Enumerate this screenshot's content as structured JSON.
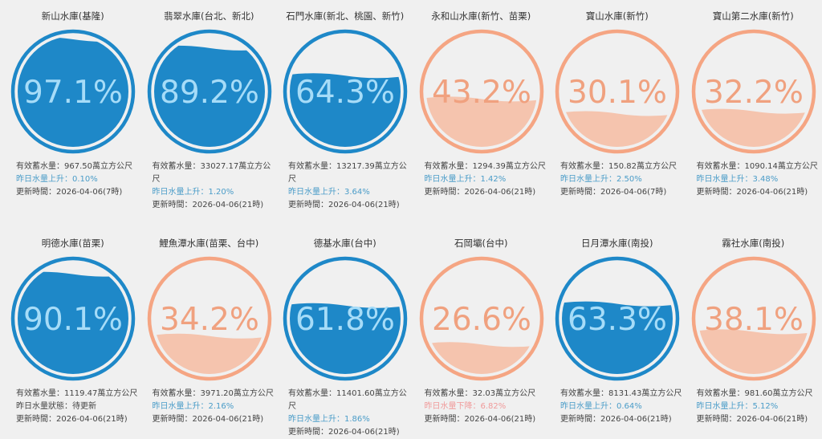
{
  "colors": {
    "blue_ring": "#1e88c8",
    "blue_fill": "#1e88c8",
    "blue_text": "#a6dcf8",
    "orange_ring": "#f5a583",
    "orange_fill": "#f5c4ae",
    "orange_text": "#f0a17f",
    "rise": "#4a9cc8",
    "fall": "#f09a9a"
  },
  "reservoirs": [
    {
      "name": "新山水庫(基隆)",
      "percent": "97.1%",
      "level": 0.971,
      "theme": "blue",
      "storage": "有效蓄水量：967.50萬立方公尺",
      "change": "昨日水量上升：0.10%",
      "change_type": "up",
      "updated": "更新時間：2026-04-06(7時)"
    },
    {
      "name": "翡翠水庫(台北、新北)",
      "percent": "89.2%",
      "level": 0.892,
      "theme": "blue",
      "storage": "有效蓄水量：33027.17萬立方公尺",
      "change": "昨日水量上升：1.20%",
      "change_type": "up",
      "updated": "更新時間：2026-04-06(21時)"
    },
    {
      "name": "石門水庫(新北、桃園、新竹)",
      "percent": "64.3%",
      "level": 0.643,
      "theme": "blue",
      "storage": "有效蓄水量：13217.39萬立方公尺",
      "change": "昨日水量上升：3.64%",
      "change_type": "up",
      "updated": "更新時間：2026-04-06(21時)"
    },
    {
      "name": "永和山水庫(新竹、苗栗)",
      "percent": "43.2%",
      "level": 0.432,
      "theme": "orange",
      "storage": "有效蓄水量：1294.39萬立方公尺",
      "change": "昨日水量上升：1.42%",
      "change_type": "up",
      "updated": "更新時間：2026-04-06(21時)"
    },
    {
      "name": "寶山水庫(新竹)",
      "percent": "30.1%",
      "level": 0.301,
      "theme": "orange",
      "storage": "有效蓄水量：150.82萬立方公尺",
      "change": "昨日水量上升：2.50%",
      "change_type": "up",
      "updated": "更新時間：2026-04-06(7時)"
    },
    {
      "name": "寶山第二水庫(新竹)",
      "percent": "32.2%",
      "level": 0.322,
      "theme": "orange",
      "storage": "有效蓄水量：1090.14萬立方公尺",
      "change": "昨日水量上升：3.48%",
      "change_type": "up",
      "updated": "更新時間：2026-04-06(21時)"
    },
    {
      "name": "明德水庫(苗栗)",
      "percent": "90.1%",
      "level": 0.901,
      "theme": "blue",
      "storage": "有效蓄水量：1119.47萬立方公尺",
      "change": "昨日水量狀態：待更新",
      "change_type": "neutral",
      "updated": "更新時間：2026-04-06(21時)"
    },
    {
      "name": "鯉魚潭水庫(苗栗、台中)",
      "percent": "34.2%",
      "level": 0.342,
      "theme": "orange",
      "storage": "有效蓄水量：3971.20萬立方公尺",
      "change": "昨日水量上升：2.16%",
      "change_type": "up",
      "updated": "更新時間：2026-04-06(21時)"
    },
    {
      "name": "德基水庫(台中)",
      "percent": "61.8%",
      "level": 0.618,
      "theme": "blue",
      "storage": "有效蓄水量：11401.60萬立方公尺",
      "change": "昨日水量上升：1.86%",
      "change_type": "up",
      "updated": "更新時間：2026-04-06(21時)"
    },
    {
      "name": "石岡壩(台中)",
      "percent": "26.6%",
      "level": 0.266,
      "theme": "orange",
      "storage": "有效蓄水量：32.03萬立方公尺",
      "change": "昨日水量下降：6.82%",
      "change_type": "down",
      "updated": "更新時間：2026-04-06(21時)"
    },
    {
      "name": "日月潭水庫(南投)",
      "percent": "63.3%",
      "level": 0.633,
      "theme": "blue",
      "storage": "有效蓄水量：8131.43萬立方公尺",
      "change": "昨日水量上升：0.64%",
      "change_type": "up",
      "updated": "更新時間：2026-04-06(21時)"
    },
    {
      "name": "霧社水庫(南投)",
      "percent": "38.1%",
      "level": 0.381,
      "theme": "orange",
      "storage": "有效蓄水量：981.60萬立方公尺",
      "change": "昨日水量上升：5.12%",
      "change_type": "up",
      "updated": "更新時間：2026-04-06(21時)"
    }
  ]
}
